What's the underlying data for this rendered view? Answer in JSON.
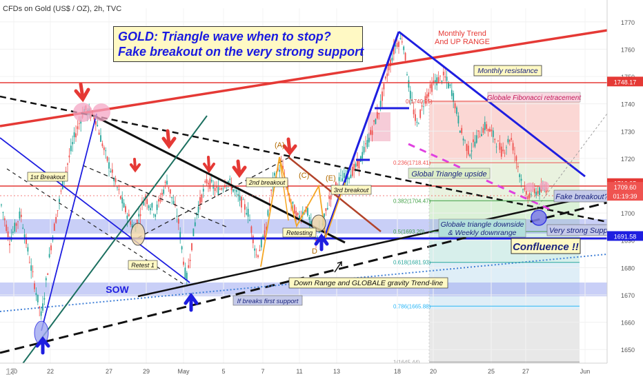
{
  "header": {
    "symbol": "CFDs on Gold (US$ / OZ), 2h, TVC"
  },
  "title_box": {
    "line1": "GOLD: Triangle wave when to stop?",
    "line2": "Fake breakout on the very strong support"
  },
  "colors": {
    "up": "#26a69a",
    "down": "#ef5350",
    "trend_red": "#e53935",
    "blue": "#1e1ee0",
    "title_bg": "#fff9c4",
    "note_bg": "#fff9c4"
  },
  "chart_data": {
    "type": "candlestick",
    "ylim": [
      1645,
      1775
    ],
    "y_ticks": [
      1650,
      1660,
      1670,
      1680,
      1690,
      1700,
      1710,
      1720,
      1730,
      1740,
      1750,
      1760,
      1770
    ],
    "x_ticks": [
      "20",
      "22",
      "27",
      "29",
      "May",
      "5",
      "7",
      "11",
      "13",
      "18",
      "20",
      "25",
      "27",
      "Jun"
    ],
    "price_badges": [
      {
        "label": "1748.17",
        "value": 1748.17,
        "color": "#e53935"
      },
      {
        "label": "1710.95",
        "value": 1710.95,
        "color": "#e53935"
      },
      {
        "label": "1709.60",
        "value": 1709.6,
        "color": "#ef5350"
      },
      {
        "label": "01:19:39",
        "value": 1706.3,
        "color": "#ef5350"
      },
      {
        "label": "1691.58",
        "value": 1691.58,
        "color": "#1e1ee0"
      }
    ],
    "fib_levels": [
      {
        "label": "0.236(1718.41)",
        "value": 1718.41,
        "color": "#ef5350"
      },
      {
        "label": "0.382(1704.47)",
        "value": 1704.47,
        "color": "#43a047"
      },
      {
        "label": "0.5(1693.20)",
        "value": 1693.2,
        "color": "#43a047"
      },
      {
        "label": "0.618(1681.93)",
        "value": 1681.93,
        "color": "#26a69a"
      },
      {
        "label": "0.786(1665.88)",
        "value": 1665.88,
        "color": "#29b6f6"
      },
      {
        "label": "1(1645.44)",
        "value": 1645.44,
        "color": "#9e9e9e"
      }
    ],
    "fib_top_label": "0(1740.95)",
    "annotations": [
      "Monthly Trend",
      "And UP RANGE",
      "Monthly resistance",
      "Globale Fibonacci retracement",
      "1st Breakout",
      "2nd breakout",
      "3rd breakout",
      "Retest 1",
      "Retesting",
      "SOW",
      "If breaks first support",
      "Down Range and GLOBALE gravity Trend-line",
      "Global Triangle upside",
      "Globale triangle downside",
      "& Weekly downrange",
      "Confluence !!",
      "Fake breakout?!",
      "Very strong Suppor"
    ],
    "wave_labels": [
      "(A)",
      "(C)",
      "(E)",
      "D"
    ]
  }
}
